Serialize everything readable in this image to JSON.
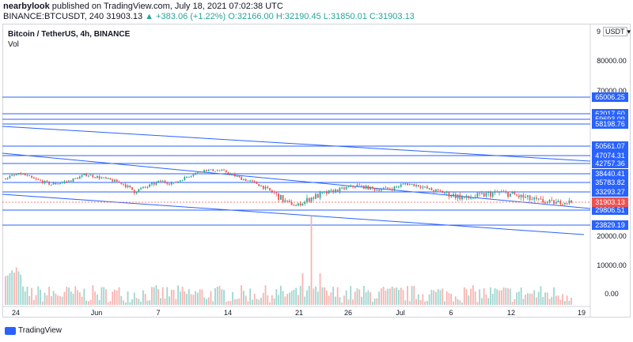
{
  "header": {
    "author": "nearbylook",
    "published": "published on TradingView.com, July 18, 2021 07:02:38 UTC",
    "symbol_line": "BINANCE:BTCUSDT, 240",
    "last": "31903.13",
    "change": "▲ +383.06 (+1.22%)",
    "open_label": "O:",
    "open": "32166.00",
    "high_label": "H:",
    "high": "32190.45",
    "low_label": "L:",
    "low": "31850.01",
    "close_label": "C:",
    "close": "31903.13"
  },
  "legend": {
    "title": "Bitcoin / TetherUS, 4h, BINANCE",
    "vol": "Vol"
  },
  "currency": {
    "icon_text": "9",
    "label": "USDT",
    "menu": "▾"
  },
  "footer": {
    "brand": "TradingView"
  },
  "colors": {
    "up": "#26a69a",
    "down": "#ef5350",
    "line": "#2962ff",
    "vol_up": "#9fd6cf",
    "vol_down": "#f7b4b1",
    "price_tag": "#ef5350"
  },
  "chart_data": {
    "type": "candlestick",
    "price_axis": {
      "ylim": [
        0,
        90000
      ],
      "ticks": [
        "80000.00",
        "70000.00",
        "20000.00",
        "10000.00",
        "0.00"
      ]
    },
    "time_axis": {
      "ticks": [
        "24",
        "Jun",
        "7",
        "14",
        "21",
        "26",
        "Jul",
        "6",
        "12",
        "19"
      ]
    },
    "horizontal_levels": [
      "65006.25",
      "62017.60",
      "59693.09",
      "58198.76",
      "50561.07",
      "47074.31",
      "42757.36",
      "38440.41",
      "35783.82",
      "33293.27",
      "29806.51",
      "23829.19"
    ],
    "current_price": "31903.13",
    "price_path": [
      [
        0,
        37000
      ],
      [
        8,
        38500
      ],
      [
        14,
        36800
      ],
      [
        22,
        35300
      ],
      [
        30,
        36200
      ],
      [
        38,
        38200
      ],
      [
        46,
        37000
      ],
      [
        54,
        35700
      ],
      [
        60,
        33500
      ],
      [
        66,
        34700
      ],
      [
        72,
        36200
      ],
      [
        78,
        35500
      ],
      [
        86,
        38200
      ],
      [
        92,
        40000
      ],
      [
        100,
        39800
      ],
      [
        108,
        37200
      ],
      [
        116,
        35500
      ],
      [
        122,
        33600
      ],
      [
        128,
        32200
      ],
      [
        134,
        31000
      ],
      [
        140,
        32400
      ],
      [
        148,
        33200
      ],
      [
        156,
        34200
      ],
      [
        162,
        35000
      ],
      [
        170,
        34000
      ],
      [
        178,
        34200
      ],
      [
        184,
        35500
      ],
      [
        190,
        35000
      ],
      [
        196,
        33800
      ],
      [
        204,
        33000
      ],
      [
        212,
        32400
      ],
      [
        220,
        32900
      ],
      [
        228,
        33300
      ],
      [
        236,
        32700
      ],
      [
        244,
        32100
      ],
      [
        252,
        31700
      ],
      [
        260,
        31900
      ]
    ],
    "volume_shape": "background volume bars, spike near Jun 22"
  }
}
